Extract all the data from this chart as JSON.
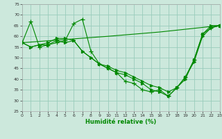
{
  "background_color": "#cce8dc",
  "grid_color": "#99ccbb",
  "line_color": "#008800",
  "xlabel": "Humidité relative (%)",
  "ylim": [
    25,
    75
  ],
  "xlim": [
    0,
    23
  ],
  "yticks": [
    25,
    30,
    35,
    40,
    45,
    50,
    55,
    60,
    65,
    70,
    75
  ],
  "xticks": [
    0,
    1,
    2,
    3,
    4,
    5,
    6,
    7,
    8,
    9,
    10,
    11,
    12,
    13,
    14,
    15,
    16,
    17,
    18,
    19,
    20,
    21,
    22,
    23
  ],
  "line1_x": [
    0,
    1,
    2,
    3,
    4,
    5,
    6,
    7,
    8,
    9,
    10,
    11,
    12,
    13,
    14,
    15,
    16,
    17,
    18,
    19,
    20,
    21,
    22,
    23
  ],
  "line1_y": [
    57,
    67,
    55,
    56,
    57,
    58,
    66,
    68,
    53,
    47,
    45,
    43,
    39,
    38,
    35,
    34,
    35,
    32,
    36,
    41,
    49,
    61,
    64,
    65
  ],
  "line2_x": [
    0,
    1,
    2,
    3,
    4,
    5,
    6,
    7,
    8,
    9,
    10,
    11,
    12,
    13,
    14,
    15,
    16,
    17,
    18,
    19,
    20,
    21,
    22,
    23
  ],
  "line2_y": [
    57,
    55,
    56,
    57,
    59,
    59,
    58,
    53,
    50,
    47,
    46,
    44,
    43,
    41,
    39,
    37,
    36,
    34,
    36,
    40,
    49,
    61,
    65,
    65
  ],
  "line3_x": [
    0,
    1,
    2,
    3,
    4,
    5,
    6,
    7,
    8,
    9,
    10,
    11,
    12,
    13,
    14,
    15,
    16,
    17,
    18,
    19,
    20,
    21,
    22,
    23
  ],
  "line3_y": [
    57,
    55,
    56,
    56,
    58,
    57,
    58,
    53,
    50,
    47,
    45,
    43,
    42,
    40,
    38,
    35,
    34,
    32,
    36,
    41,
    48,
    60,
    64,
    65
  ],
  "line4_x": [
    0,
    10,
    16,
    23
  ],
  "line4_y": [
    57,
    60,
    62,
    65
  ]
}
